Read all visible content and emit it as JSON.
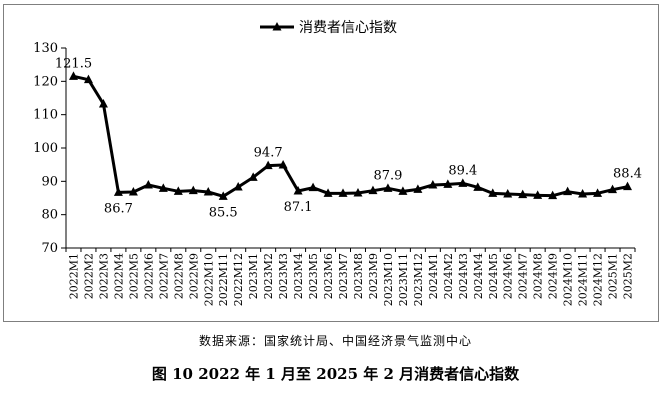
{
  "chart_data": {
    "type": "line",
    "title": "",
    "legend": {
      "label": "消费者信心指数",
      "position": "top"
    },
    "xlabel": "",
    "ylabel": "",
    "ylim": [
      70,
      130
    ],
    "yticks": [
      70,
      80,
      90,
      100,
      110,
      120,
      130
    ],
    "grid": false,
    "categories": [
      "2022M1",
      "2022M2",
      "2022M3",
      "2022M4",
      "2022M5",
      "2022M6",
      "2022M7",
      "2022M8",
      "2022M9",
      "2022M10",
      "2022M11",
      "2022M12",
      "2023M1",
      "2023M2",
      "2023M3",
      "2023M4",
      "2023M5",
      "2023M6",
      "2023M7",
      "2023M8",
      "2023M9",
      "2023M10",
      "2023M11",
      "2023M12",
      "2024M1",
      "2024M2",
      "2024M3",
      "2024M4",
      "2024M5",
      "2024M6",
      "2024M7",
      "2024M8",
      "2024M9",
      "2024M10",
      "2024M11",
      "2024M12",
      "2025M1",
      "2025M2"
    ],
    "series": [
      {
        "name": "消费者信心指数",
        "color": "#000000",
        "marker": "triangle",
        "values": [
          121.5,
          120.5,
          113.2,
          86.7,
          86.8,
          88.9,
          87.9,
          87.0,
          87.2,
          86.8,
          85.5,
          88.3,
          91.2,
          94.7,
          94.9,
          87.1,
          88.1,
          86.4,
          86.4,
          86.5,
          87.2,
          87.9,
          87.0,
          87.6,
          88.9,
          89.1,
          89.4,
          88.2,
          86.4,
          86.2,
          86.0,
          85.8,
          85.7,
          86.9,
          86.2,
          86.4,
          87.5,
          88.4
        ]
      }
    ],
    "data_labels": [
      {
        "index": 0,
        "text": "121.5",
        "place": "above"
      },
      {
        "index": 3,
        "text": "86.7",
        "place": "below"
      },
      {
        "index": 10,
        "text": "85.5",
        "place": "below"
      },
      {
        "index": 13,
        "text": "94.7",
        "place": "above"
      },
      {
        "index": 15,
        "text": "87.1",
        "place": "below"
      },
      {
        "index": 21,
        "text": "87.9",
        "place": "above"
      },
      {
        "index": 26,
        "text": "89.4",
        "place": "above"
      },
      {
        "index": 37,
        "text": "88.4",
        "place": "above"
      }
    ]
  },
  "source_note": "数据来源：国家统计局、中国经济景气监测中心",
  "caption": "图 10  2022 年 1 月至 2025 年 2 月消费者信心指数"
}
